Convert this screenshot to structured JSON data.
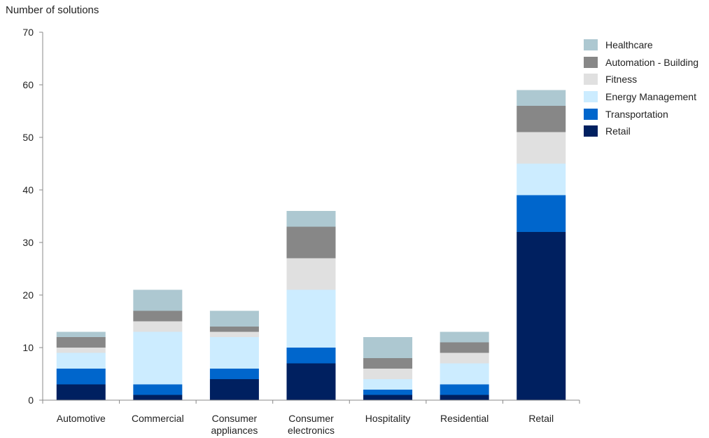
{
  "chart_data": {
    "type": "bar",
    "stacked": true,
    "title": "",
    "ylabel": "Number of solutions",
    "xlabel": "",
    "ylim": [
      0,
      70
    ],
    "yticks": [
      0,
      10,
      20,
      30,
      40,
      50,
      60,
      70
    ],
    "grid": false,
    "legend_position": "right",
    "categories": [
      [
        "Automotive"
      ],
      [
        "Commercial"
      ],
      [
        "Consumer",
        "appliances"
      ],
      [
        "Consumer",
        "electronics"
      ],
      [
        "Hospitality"
      ],
      [
        "Residential"
      ],
      [
        "Retail"
      ]
    ],
    "series": [
      {
        "name": "Retail",
        "color": "#002060",
        "values": [
          3,
          1,
          4,
          7,
          1,
          1,
          32
        ]
      },
      {
        "name": "Transportation",
        "color": "#0066CC",
        "values": [
          3,
          2,
          2,
          3,
          1,
          2,
          7
        ]
      },
      {
        "name": "Energy Management",
        "color": "#CCECFF",
        "values": [
          3,
          10,
          6,
          11,
          2,
          4,
          6
        ]
      },
      {
        "name": "Fitness",
        "color": "#E0E0E0",
        "values": [
          1,
          2,
          1,
          6,
          2,
          2,
          6
        ]
      },
      {
        "name": "Automation - Building",
        "color": "#878787",
        "values": [
          2,
          2,
          1,
          6,
          2,
          2,
          5
        ]
      },
      {
        "name": "Healthcare",
        "color": "#ADC8D1",
        "values": [
          1,
          4,
          3,
          3,
          4,
          2,
          3
        ]
      }
    ]
  }
}
